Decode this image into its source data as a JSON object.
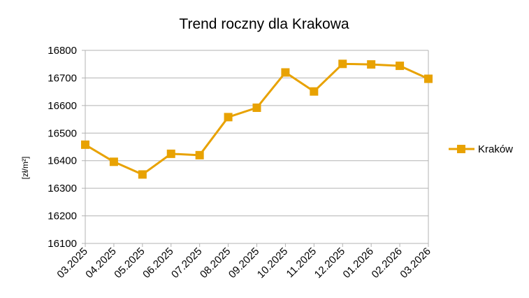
{
  "chart_data": {
    "type": "line",
    "title": "Trend roczny dla Krakowa",
    "xlabel": "",
    "ylabel": "[zł/m²]",
    "categories": [
      "03.2025",
      "04.2025",
      "05.2025",
      "06.2025",
      "07.2025",
      "08.2025",
      "09.2025",
      "10.2025",
      "11.2025",
      "12.2025",
      "01.2026",
      "02.2026",
      "03.2026"
    ],
    "series": [
      {
        "name": "Kraków",
        "color": "#E8A202",
        "values": [
          16458,
          16396,
          16350,
          16425,
          16420,
          16558,
          16592,
          16720,
          16651,
          16751,
          16749,
          16744,
          16697
        ]
      }
    ],
    "ylim": [
      16100,
      16800
    ],
    "yticks": [
      "16800",
      "16700",
      "16600",
      "16500",
      "16400",
      "16300",
      "16200",
      "16100"
    ],
    "grid": true,
    "legend_position": "right",
    "marker": "square-icon"
  }
}
